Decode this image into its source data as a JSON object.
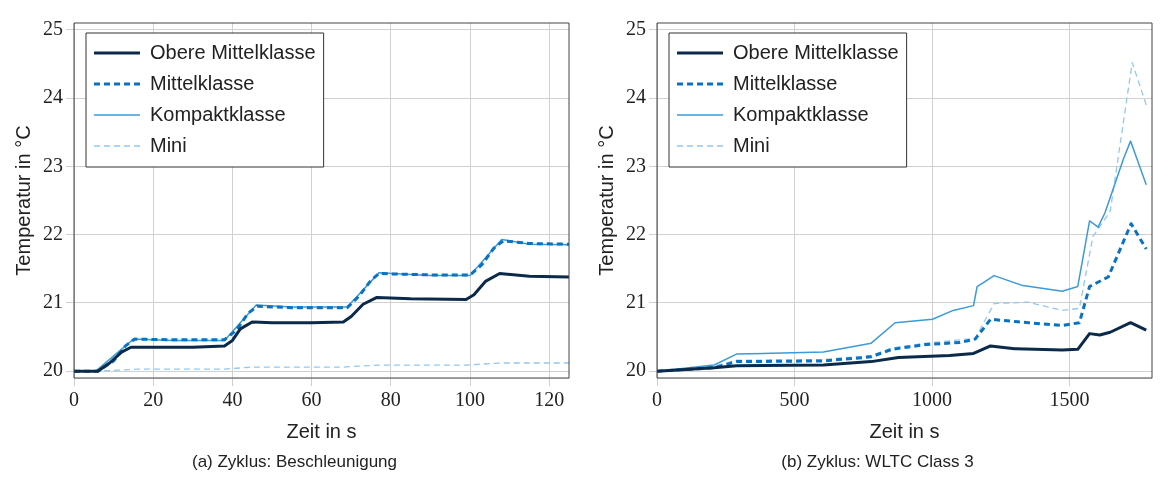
{
  "chart_data": [
    {
      "type": "line",
      "xlabel": "Zeit in s",
      "ylabel": "Temperatur in °C",
      "xlim": [
        0,
        125
      ],
      "ylim": [
        19.9,
        25.1
      ],
      "xticks": [
        0,
        20,
        40,
        60,
        80,
        100,
        120
      ],
      "yticks": [
        20,
        21,
        22,
        23,
        24,
        25
      ],
      "grid": true,
      "legend": "top left",
      "annotations": [
        "(a) Zyklus: Beschleunigung"
      ],
      "series": [
        {
          "name": "Obere Mittelklasse",
          "color": "#0b2a4a",
          "line_style": "solid",
          "x": [
            0,
            6,
            9,
            12,
            14.4,
            20,
            30,
            38,
            40,
            42,
            45,
            50,
            60,
            68,
            70,
            73,
            76.5,
            85,
            99,
            101,
            104,
            107.5,
            115,
            125
          ],
          "values": [
            20,
            20,
            20.12,
            20.28,
            20.35,
            20.35,
            20.35,
            20.37,
            20.45,
            20.62,
            20.72,
            20.71,
            20.71,
            20.72,
            20.8,
            20.98,
            21.08,
            21.06,
            21.05,
            21.12,
            21.32,
            21.43,
            21.39,
            21.38
          ]
        },
        {
          "name": "Mittelklasse",
          "color": "#0a72c0",
          "line_style": "dashed",
          "x": [
            0,
            6,
            10,
            13,
            15.3,
            25,
            38,
            41,
            44,
            46.3,
            55,
            69,
            72,
            75,
            77,
            90,
            100,
            103,
            106,
            108.4,
            115,
            125
          ],
          "values": [
            20,
            20,
            20.15,
            20.37,
            20.47,
            20.46,
            20.46,
            20.6,
            20.85,
            20.95,
            20.93,
            20.93,
            21.1,
            21.33,
            21.43,
            21.41,
            21.41,
            21.56,
            21.8,
            21.91,
            21.87,
            21.86
          ]
        },
        {
          "name": "Kompaktklasse",
          "color": "#3b9ad8",
          "line_style": "solid",
          "x": [
            0,
            5.5,
            15,
            25,
            38,
            46,
            55,
            69,
            77,
            90,
            100,
            108,
            115,
            125
          ],
          "values": [
            20,
            20,
            20.47,
            20.45,
            20.45,
            20.97,
            20.94,
            20.94,
            21.44,
            21.4,
            21.4,
            21.93,
            21.86,
            21.85
          ]
        },
        {
          "name": "Mini",
          "color": "#93c8ee",
          "line_style": "dashed",
          "x": [
            0,
            5,
            10,
            16,
            38,
            45,
            68,
            77,
            99,
            108,
            125
          ],
          "values": [
            20,
            20,
            20.01,
            20.03,
            20.03,
            20.06,
            20.06,
            20.09,
            20.09,
            20.12,
            20.12
          ]
        }
      ]
    },
    {
      "type": "line",
      "xlabel": "Zeit in s",
      "ylabel": "Temperatur in °C",
      "xlim": [
        0,
        1800
      ],
      "ylim": [
        19.9,
        25.1
      ],
      "xticks": [
        0,
        500,
        1000,
        1500
      ],
      "yticks": [
        20,
        21,
        22,
        23,
        24,
        25
      ],
      "grid": true,
      "legend": "top left",
      "annotations": [
        "(b) Zyklus: WLTC Class 3"
      ],
      "series": [
        {
          "name": "Obere Mittelklasse",
          "color": "#0b2a4a",
          "line_style": "solid",
          "x": [
            0,
            208,
            289,
            605,
            779,
            878,
            1064,
            1151,
            1213,
            1300,
            1474,
            1530,
            1573,
            1610,
            1648,
            1722,
            1779
          ],
          "values": [
            20,
            20.05,
            20.08,
            20.09,
            20.14,
            20.2,
            20.23,
            20.26,
            20.37,
            20.33,
            20.31,
            20.32,
            20.55,
            20.53,
            20.57,
            20.71,
            20.6
          ]
        },
        {
          "name": "Mittelklasse",
          "color": "#0a72c0",
          "line_style": "dashed",
          "x": [
            0,
            208,
            289,
            605,
            779,
            854,
            978,
            1102,
            1157,
            1213,
            1350,
            1474,
            1536,
            1573,
            1641,
            1724,
            1779
          ],
          "values": [
            20,
            20.05,
            20.14,
            20.15,
            20.21,
            20.32,
            20.39,
            20.42,
            20.47,
            20.76,
            20.71,
            20.67,
            20.71,
            21.24,
            21.38,
            22.16,
            21.79
          ]
        },
        {
          "name": "Kompaktklasse",
          "color": "#3b9ad8",
          "line_style": "solid",
          "x": [
            0,
            208,
            289,
            605,
            779,
            866,
            1002,
            1077,
            1151,
            1164,
            1226,
            1325,
            1474,
            1530,
            1573,
            1604,
            1629,
            1697,
            1722,
            1779
          ],
          "values": [
            20,
            20.09,
            20.25,
            20.28,
            20.41,
            20.71,
            20.76,
            20.89,
            20.96,
            21.24,
            21.4,
            21.26,
            21.17,
            21.24,
            22.2,
            22.11,
            22.32,
            23.12,
            23.37,
            22.73
          ]
        },
        {
          "name": "Mini",
          "color": "#93c8ee",
          "line_style": "dashed",
          "x": [
            0,
            208,
            289,
            605,
            779,
            854,
            978,
            1157,
            1226,
            1350,
            1474,
            1536,
            1585,
            1648,
            1728,
            1779
          ],
          "values": [
            20,
            20.07,
            20.16,
            20.17,
            20.23,
            20.34,
            20.41,
            20.48,
            20.99,
            21.01,
            20.89,
            20.92,
            21.97,
            22.34,
            24.52,
            23.9
          ]
        }
      ]
    }
  ]
}
